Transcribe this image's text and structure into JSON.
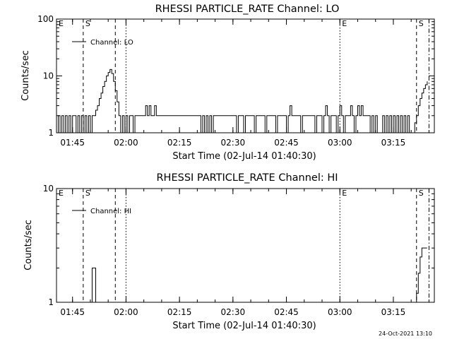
{
  "chart_data": [
    {
      "type": "line",
      "title": "RHESSI PARTICLE_RATE Channel: LO",
      "xlabel": "Start Time (02-Jul-14 01:40:30)",
      "ylabel": "Counts/sec",
      "yscale": "log",
      "ylim": [
        1,
        100
      ],
      "xlim_min": [
        0,
        106
      ],
      "x_tick_labels": [
        "01:45",
        "02:00",
        "02:15",
        "02:30",
        "02:45",
        "03:00",
        "03:15"
      ],
      "y_tick_labels": [
        "1",
        "10",
        "100"
      ],
      "legend": "Channel: LO",
      "legend_position": "top-left",
      "series": [
        {
          "label": "Channel: LO",
          "points": [
            [
              0,
              1
            ],
            [
              0.5,
              2
            ],
            [
              1,
              1
            ],
            [
              1.5,
              2
            ],
            [
              2,
              1
            ],
            [
              2.5,
              2
            ],
            [
              3,
              1
            ],
            [
              3.5,
              2
            ],
            [
              4,
              1
            ],
            [
              4.5,
              2
            ],
            [
              5,
              2
            ],
            [
              5.5,
              1
            ],
            [
              6,
              2
            ],
            [
              6.5,
              1
            ],
            [
              7,
              2
            ],
            [
              7.5,
              1
            ],
            [
              8,
              2
            ],
            [
              8.5,
              1
            ],
            [
              9,
              2
            ],
            [
              9.5,
              1
            ],
            [
              10,
              2
            ],
            [
              10.5,
              2
            ],
            [
              11,
              2.5
            ],
            [
              11.5,
              3
            ],
            [
              12,
              4
            ],
            [
              12.5,
              5
            ],
            [
              13,
              6.5
            ],
            [
              13.5,
              8
            ],
            [
              14,
              10
            ],
            [
              14.5,
              11.5
            ],
            [
              15,
              13
            ],
            [
              15.5,
              11
            ],
            [
              16,
              8
            ],
            [
              16.5,
              5.5
            ],
            [
              17,
              3.5
            ],
            [
              17.5,
              2
            ],
            [
              18,
              1
            ],
            [
              18.5,
              2
            ],
            [
              19,
              1
            ],
            [
              19.5,
              2
            ],
            [
              20,
              1
            ],
            [
              20.5,
              2
            ],
            [
              21,
              2
            ],
            [
              21.5,
              1
            ],
            [
              22,
              2
            ],
            [
              22.5,
              2
            ],
            [
              23,
              2
            ],
            [
              23.5,
              2
            ],
            [
              24,
              2
            ],
            [
              24.5,
              2
            ],
            [
              25,
              3
            ],
            [
              25.5,
              2
            ],
            [
              26,
              3
            ],
            [
              26.5,
              2
            ],
            [
              27,
              2
            ],
            [
              27.5,
              3
            ],
            [
              28,
              2
            ],
            [
              29,
              2
            ],
            [
              30,
              2
            ],
            [
              31,
              2
            ],
            [
              32,
              2
            ],
            [
              33,
              2
            ],
            [
              34,
              2
            ],
            [
              35,
              2
            ],
            [
              36,
              2
            ],
            [
              37,
              2
            ],
            [
              38,
              2
            ],
            [
              39,
              2
            ],
            [
              40,
              2
            ],
            [
              40.5,
              1
            ],
            [
              41,
              2
            ],
            [
              41.5,
              1
            ],
            [
              42,
              2
            ],
            [
              42.5,
              1
            ],
            [
              43,
              2
            ],
            [
              43.5,
              1
            ],
            [
              44,
              2
            ],
            [
              45,
              2
            ],
            [
              46,
              2
            ],
            [
              47,
              2
            ],
            [
              48,
              2
            ],
            [
              49,
              2
            ],
            [
              50,
              2
            ],
            [
              50.5,
              1
            ],
            [
              51,
              2
            ],
            [
              52,
              2
            ],
            [
              52.5,
              1
            ],
            [
              53,
              2
            ],
            [
              54,
              2
            ],
            [
              55,
              2
            ],
            [
              55.5,
              1
            ],
            [
              56,
              2
            ],
            [
              57,
              2
            ],
            [
              58,
              2
            ],
            [
              58.5,
              1
            ],
            [
              59,
              2
            ],
            [
              60,
              2
            ],
            [
              61,
              2
            ],
            [
              61.5,
              1
            ],
            [
              62,
              2
            ],
            [
              63,
              2
            ],
            [
              64,
              2
            ],
            [
              64.5,
              1
            ],
            [
              65,
              2
            ],
            [
              65.5,
              3
            ],
            [
              66,
              2
            ],
            [
              67,
              2
            ],
            [
              68,
              2
            ],
            [
              68.5,
              1
            ],
            [
              69,
              2
            ],
            [
              70,
              2
            ],
            [
              71,
              2
            ],
            [
              72,
              2
            ],
            [
              72.5,
              1
            ],
            [
              73,
              2
            ],
            [
              74,
              2
            ],
            [
              74.5,
              1
            ],
            [
              75,
              2
            ],
            [
              75.5,
              3
            ],
            [
              76,
              2
            ],
            [
              76.5,
              1
            ],
            [
              77,
              2
            ],
            [
              78,
              2
            ],
            [
              78.5,
              1
            ],
            [
              79,
              2
            ],
            [
              79.5,
              3
            ],
            [
              80,
              2
            ],
            [
              80.5,
              1
            ],
            [
              81,
              2
            ],
            [
              82,
              2
            ],
            [
              82.5,
              3
            ],
            [
              83,
              2
            ],
            [
              83.5,
              1
            ],
            [
              84,
              2
            ],
            [
              84.5,
              3
            ],
            [
              85,
              2
            ],
            [
              85.5,
              3
            ],
            [
              86,
              2
            ],
            [
              87,
              2
            ],
            [
              88,
              1
            ],
            [
              88.5,
              2
            ],
            [
              89,
              1
            ],
            [
              89.5,
              2
            ],
            [
              90,
              1
            ],
            [
              91,
              1
            ],
            [
              91.5,
              2
            ],
            [
              92,
              1
            ],
            [
              92.5,
              2
            ],
            [
              93,
              1
            ],
            [
              93.5,
              2
            ],
            [
              94,
              1
            ],
            [
              94.5,
              2
            ],
            [
              95,
              1
            ],
            [
              95.5,
              2
            ],
            [
              96,
              1
            ],
            [
              96.5,
              2
            ],
            [
              97,
              1
            ],
            [
              97.5,
              2
            ],
            [
              98,
              1
            ],
            [
              98.5,
              2
            ],
            [
              99,
              1
            ],
            [
              100,
              1
            ],
            [
              100.5,
              1.5
            ],
            [
              101,
              2
            ],
            [
              101.5,
              3
            ],
            [
              102,
              4
            ],
            [
              102.5,
              5
            ],
            [
              103,
              6
            ],
            [
              103.5,
              7
            ],
            [
              104,
              8
            ]
          ]
        }
      ],
      "markers": [
        {
          "label": "E",
          "x": 0,
          "style": "solid"
        },
        {
          "label": "S",
          "x": 7.5,
          "style": "dashed"
        },
        {
          "label": "",
          "x": 16.5,
          "style": "dashed"
        },
        {
          "label": "",
          "x": 19.5,
          "style": "dotted"
        },
        {
          "label": "E",
          "x": 79.5,
          "style": "dotted"
        },
        {
          "label": "S",
          "x": 101,
          "style": "dashed"
        },
        {
          "label": "",
          "x": 104.5,
          "style": "dashdot"
        }
      ]
    },
    {
      "type": "line",
      "title": "RHESSI PARTICLE_RATE Channel: HI",
      "xlabel": "Start Time (02-Jul-14 01:40:30)",
      "ylabel": "Counts/sec",
      "yscale": "log",
      "ylim": [
        1,
        10
      ],
      "xlim_min": [
        0,
        106
      ],
      "x_tick_labels": [
        "01:45",
        "02:00",
        "02:15",
        "02:30",
        "02:45",
        "03:00",
        "03:15"
      ],
      "y_tick_labels": [
        "1",
        "10"
      ],
      "legend": "Channel: HI",
      "legend_position": "top-left",
      "series": [
        {
          "label": "Channel: HI",
          "points": [
            [
              9,
              1
            ],
            [
              9.5,
              1
            ],
            [
              10,
              2
            ],
            [
              10.5,
              2
            ],
            [
              11,
              1
            ],
            [
              12,
              1
            ],
            [
              100,
              1
            ],
            [
              101,
              1.2
            ],
            [
              101.5,
              1.8
            ],
            [
              102,
              2.5
            ],
            [
              102.5,
              3
            ],
            [
              104,
              3
            ]
          ]
        }
      ],
      "markers": [
        {
          "label": "E",
          "x": 0,
          "style": "solid"
        },
        {
          "label": "S",
          "x": 7.5,
          "style": "dashed"
        },
        {
          "label": "",
          "x": 16.5,
          "style": "dashed"
        },
        {
          "label": "",
          "x": 19.5,
          "style": "dotted"
        },
        {
          "label": "E",
          "x": 79.5,
          "style": "dotted"
        },
        {
          "label": "S",
          "x": 101,
          "style": "dashed"
        },
        {
          "label": "",
          "x": 104.5,
          "style": "dashdot"
        }
      ]
    }
  ],
  "footer": {
    "timestamp": "24-Oct-2021 13:10"
  }
}
